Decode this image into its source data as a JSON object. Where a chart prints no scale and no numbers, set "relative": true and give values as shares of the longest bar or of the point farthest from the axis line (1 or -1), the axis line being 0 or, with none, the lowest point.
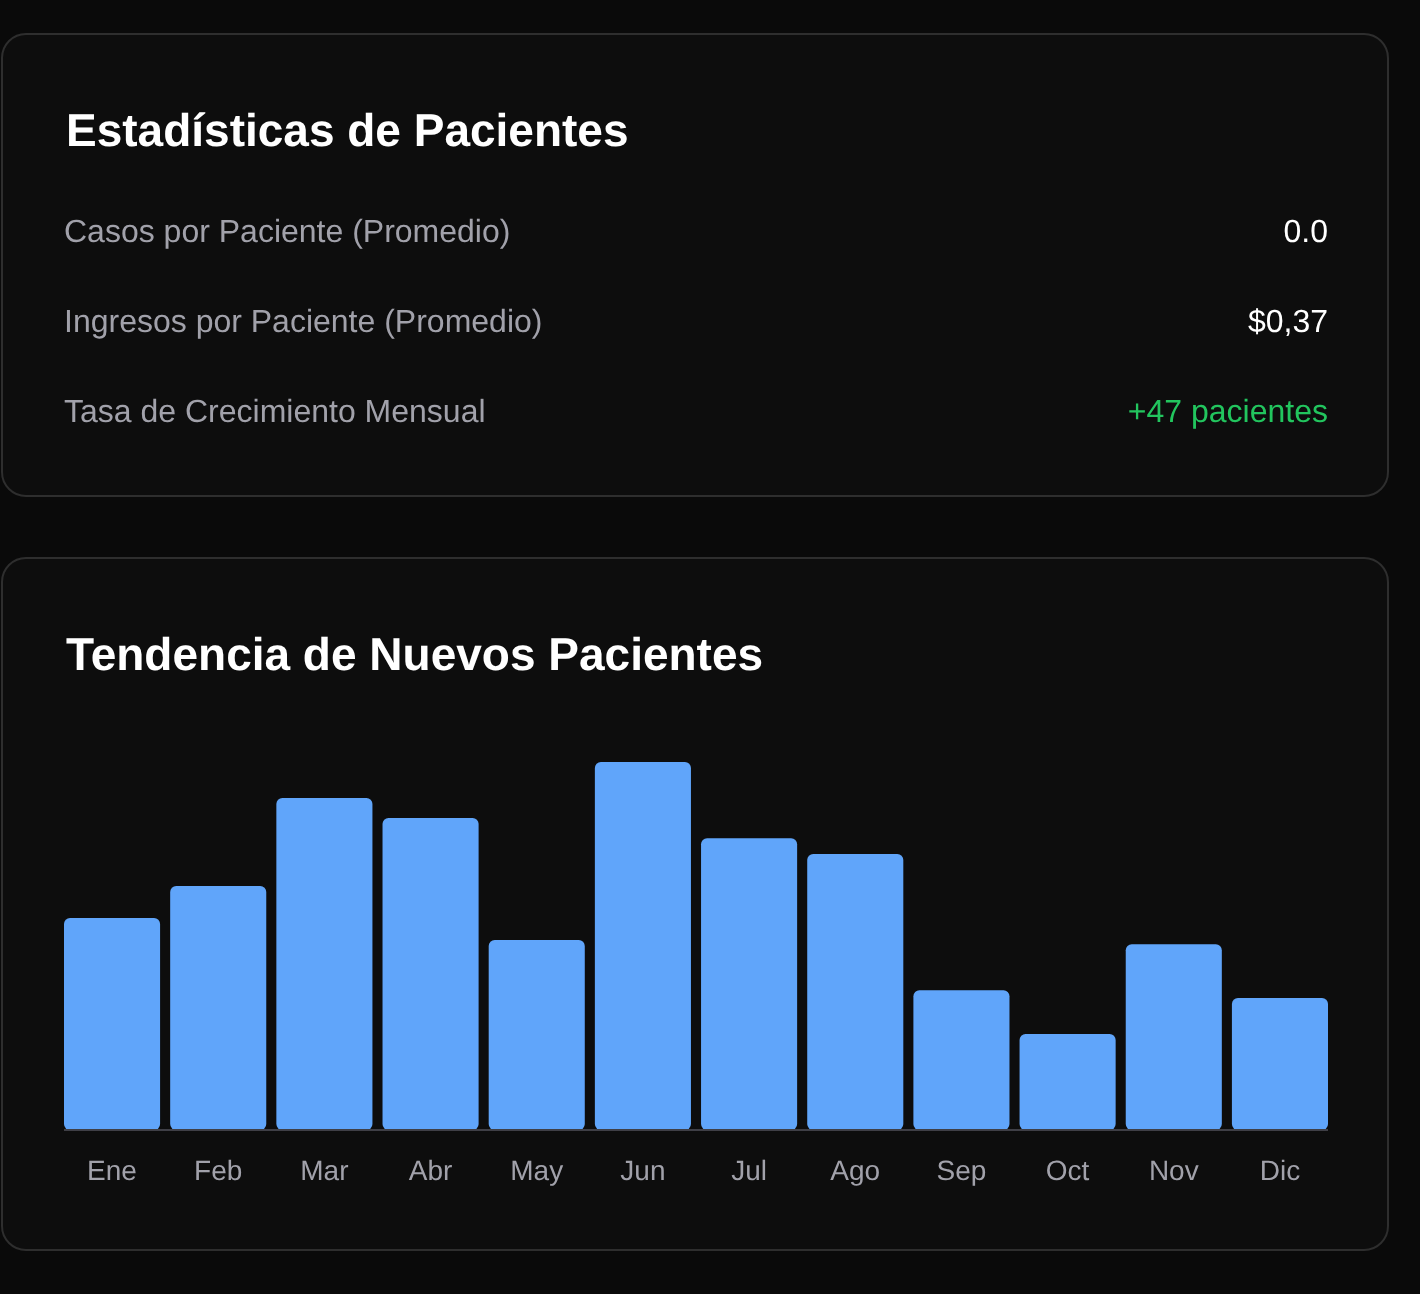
{
  "chart_data": [
    {
      "type": "other",
      "title": "Estadísticas de Pacientes",
      "annotations": [
        "Casos por Paciente (Promedio)",
        "0.0",
        "Ingresos por Paciente (Promedio)",
        "$0,37",
        "Tasa de Crecimiento Mensual",
        "+47 pacientes"
      ],
      "colors": [
        "#ffffff",
        "#ffffff",
        "#22c55e"
      ]
    },
    {
      "type": "bar",
      "title": "Tendencia de Nuevos Pacientes",
      "relative": true,
      "categories": [
        "Ene",
        "Feb",
        "Mar",
        "Abr",
        "May",
        "Jun",
        "Jul",
        "Ago",
        "Sep",
        "Oct",
        "Nov",
        "Dic"
      ],
      "color": "#60a5fa",
      "values": [
        0.576,
        0.663,
        0.902,
        0.848,
        0.516,
        1,
        0.793,
        0.75,
        0.38,
        0.261,
        0.505,
        0.359
      ]
    }
  ]
}
